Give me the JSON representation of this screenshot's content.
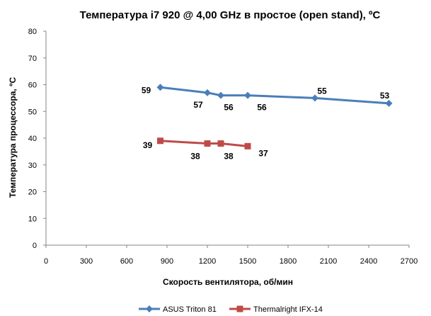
{
  "chart_data": {
    "type": "line",
    "title": "Температура i7 920 @ 4,00 GHz в простое (open stand), ºC",
    "xlabel": "Скорость вентилятора, об/мин",
    "ylabel": "Температура процессора, ºC",
    "xlim": [
      0,
      2700
    ],
    "ylim": [
      0,
      80
    ],
    "xticks": [
      0,
      300,
      600,
      900,
      1200,
      1500,
      1800,
      2100,
      2400,
      2700
    ],
    "yticks": [
      0,
      10,
      20,
      30,
      40,
      50,
      60,
      70,
      80
    ],
    "grid": false,
    "legend_position": "bottom",
    "series": [
      {
        "name": "ASUS Triton 81",
        "color": "#4a7ebb",
        "marker": "diamond",
        "x": [
          850,
          1200,
          1300,
          1500,
          2000,
          2550
        ],
        "y": [
          59,
          57,
          56,
          56,
          55,
          53
        ],
        "labels": [
          "59",
          "57",
          "56",
          "56",
          "55",
          "53"
        ]
      },
      {
        "name": "Thermalright IFX-14",
        "color": "#be4b48",
        "marker": "square",
        "x": [
          850,
          1200,
          1300,
          1500
        ],
        "y": [
          39,
          38,
          38,
          37
        ],
        "labels": [
          "39",
          "38",
          "38",
          "37"
        ]
      }
    ]
  }
}
